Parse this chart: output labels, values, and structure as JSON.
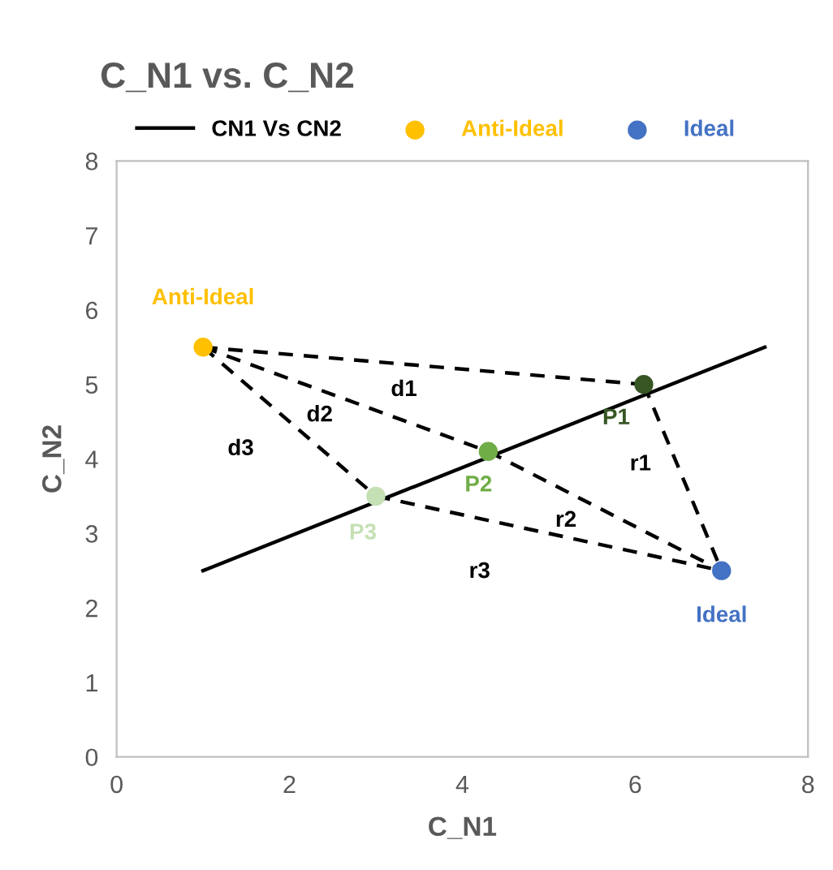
{
  "chart_data": {
    "type": "line",
    "title": "C_N1 vs. C_N2",
    "xlabel": "C_N1",
    "ylabel": "C_N2",
    "xlim": [
      0,
      8
    ],
    "ylim": [
      0,
      8
    ],
    "xticks": [
      0,
      2,
      4,
      6,
      8
    ],
    "yticks": [
      0,
      1,
      2,
      3,
      4,
      5,
      6,
      7,
      8
    ],
    "grid": false,
    "legend": "top",
    "marker": "none",
    "line_style": "solid",
    "series": [
      {
        "name": "CN1 Vs CN2",
        "color": "#000000",
        "x": [
          1,
          7.5
        ],
        "values": [
          2.5,
          5.5
        ]
      },
      {
        "name": "Anti-Ideal",
        "type": "scatter",
        "marker": "circle",
        "color": "#ffc000",
        "x": [
          1
        ],
        "values": [
          5.5
        ]
      },
      {
        "name": "Ideal",
        "type": "scatter",
        "marker": "circle",
        "color": "#4472c4",
        "x": [
          7
        ],
        "values": [
          2.5
        ]
      },
      {
        "type": "scatter",
        "marker": "circle",
        "color": "#375623",
        "x": [
          6.1
        ],
        "values": [
          5.0
        ]
      },
      {
        "type": "scatter",
        "marker": "circle",
        "color": "#70ad47",
        "x": [
          4.3
        ],
        "values": [
          4.1
        ]
      },
      {
        "type": "scatter",
        "marker": "circle",
        "color": "#c5e0b4",
        "x": [
          3
        ],
        "values": [
          3.5
        ]
      },
      {
        "type": "line",
        "line_style": "dashed",
        "color": "#000000",
        "x": [
          1,
          6.1
        ],
        "values": [
          5.5,
          5.0
        ]
      },
      {
        "type": "line",
        "line_style": "dashed",
        "color": "#000000",
        "x": [
          1,
          4.3
        ],
        "values": [
          5.5,
          4.1
        ]
      },
      {
        "type": "line",
        "line_style": "dashed",
        "color": "#000000",
        "x": [
          1,
          3
        ],
        "values": [
          5.5,
          3.5
        ]
      },
      {
        "type": "line",
        "line_style": "dashed",
        "color": "#000000",
        "x": [
          6.1,
          7
        ],
        "values": [
          5.0,
          2.5
        ]
      },
      {
        "type": "line",
        "line_style": "dashed",
        "color": "#000000",
        "x": [
          4.3,
          7
        ],
        "values": [
          4.1,
          2.5
        ]
      },
      {
        "type": "line",
        "line_style": "dashed",
        "color": "#000000",
        "x": [
          3,
          7
        ],
        "values": [
          3.5,
          2.5
        ]
      }
    ],
    "annotations": [
      {
        "text": "Anti-Ideal",
        "x": 1,
        "y": 5.5
      },
      {
        "text": "Ideal",
        "x": 7,
        "y": 2.5
      },
      {
        "text": "P1",
        "x": 6.1,
        "y": 5.0
      },
      {
        "text": "P2",
        "x": 4.3,
        "y": 4.1
      },
      {
        "text": "P3",
        "x": 3,
        "y": 3.5
      },
      {
        "text": "d1",
        "x": 3.55,
        "y": 5.25
      },
      {
        "text": "d2",
        "x": 2.65,
        "y": 4.8
      },
      {
        "text": "d3",
        "x": 2,
        "y": 4.5
      },
      {
        "text": "r1",
        "x": 6.55,
        "y": 3.75
      },
      {
        "text": "r2",
        "x": 5.65,
        "y": 3.3
      },
      {
        "text": "r3",
        "x": 4.2,
        "y": 3.2
      }
    ]
  }
}
